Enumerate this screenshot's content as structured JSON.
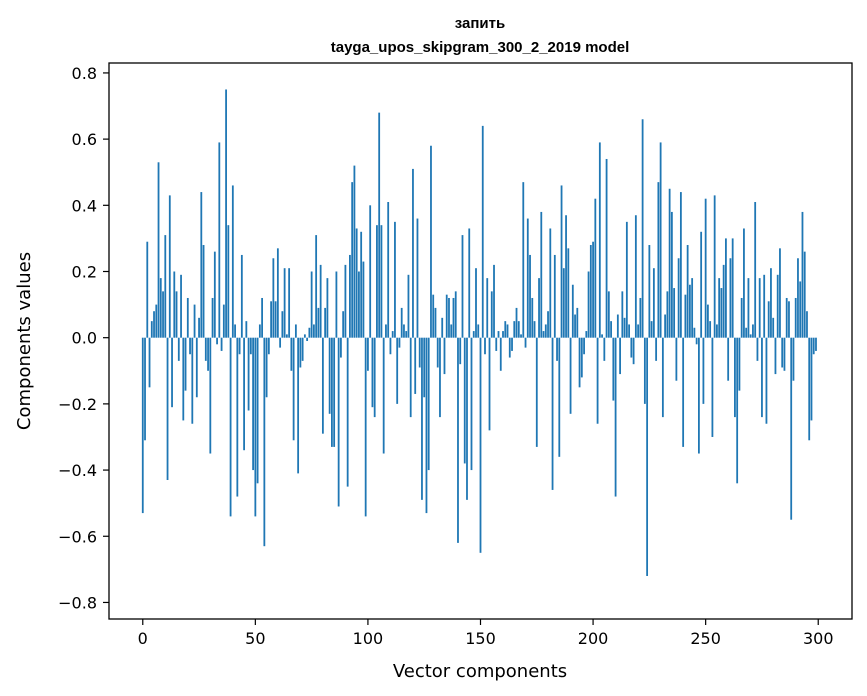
{
  "chart_data": {
    "type": "bar",
    "title_line1": "запить",
    "title_line2": "tayga_upos_skipgram_300_2_2019 model",
    "xlabel": "Vector components",
    "ylabel": "Components values",
    "xlim": [
      -15,
      315
    ],
    "ylim": [
      -0.85,
      0.83
    ],
    "x_ticks": [
      0,
      50,
      100,
      150,
      200,
      250,
      300
    ],
    "x_tick_labels": [
      "0",
      "50",
      "100",
      "150",
      "200",
      "250",
      "300"
    ],
    "y_ticks": [
      -0.8,
      -0.6,
      -0.4,
      -0.2,
      0.0,
      0.2,
      0.4,
      0.6,
      0.8
    ],
    "y_tick_labels": [
      "−0.8",
      "−0.6",
      "−0.4",
      "−0.2",
      "0.0",
      "0.2",
      "0.4",
      "0.6",
      "0.8"
    ],
    "bar_color": "#1f77b4",
    "grid": false,
    "values": [
      -0.53,
      -0.31,
      0.29,
      -0.15,
      0.05,
      0.08,
      0.1,
      0.53,
      0.18,
      0.14,
      0.31,
      -0.43,
      0.43,
      -0.21,
      0.2,
      0.14,
      -0.07,
      0.19,
      -0.25,
      -0.16,
      0.12,
      -0.05,
      -0.26,
      0.1,
      -0.18,
      0.06,
      0.44,
      0.28,
      -0.07,
      -0.1,
      -0.35,
      0.12,
      0.26,
      -0.02,
      0.59,
      -0.04,
      0.1,
      0.75,
      0.34,
      -0.54,
      0.46,
      0.04,
      -0.48,
      -0.05,
      0.25,
      -0.34,
      0.05,
      -0.22,
      -0.05,
      -0.4,
      -0.54,
      -0.44,
      0.04,
      0.12,
      -0.63,
      -0.18,
      -0.05,
      0.11,
      0.24,
      0.11,
      0.27,
      -0.03,
      0.08,
      0.21,
      0.01,
      0.21,
      -0.1,
      -0.31,
      0.04,
      -0.41,
      -0.09,
      -0.07,
      0.01,
      -0.01,
      0.03,
      0.2,
      0.04,
      0.31,
      0.09,
      0.22,
      -0.29,
      0.09,
      0.18,
      -0.23,
      -0.33,
      -0.33,
      0.2,
      -0.51,
      -0.06,
      0.08,
      0.22,
      -0.45,
      0.25,
      0.47,
      0.52,
      0.33,
      0.2,
      0.32,
      0.23,
      -0.54,
      -0.1,
      0.4,
      -0.21,
      -0.24,
      0.34,
      0.68,
      0.34,
      -0.35,
      0.04,
      0.41,
      -0.05,
      0.02,
      0.35,
      -0.2,
      -0.03,
      0.09,
      0.04,
      0.02,
      0.19,
      -0.24,
      0.51,
      -0.17,
      0.36,
      -0.09,
      -0.49,
      -0.18,
      -0.53,
      -0.4,
      0.58,
      0.13,
      0.09,
      -0.09,
      -0.24,
      0.06,
      -0.11,
      0.13,
      0.12,
      0.04,
      0.12,
      0.14,
      -0.62,
      -0.08,
      0.31,
      -0.38,
      -0.49,
      0.33,
      -0.4,
      0.02,
      0.21,
      0.04,
      -0.65,
      0.64,
      -0.05,
      0.18,
      -0.28,
      0.14,
      0.22,
      -0.04,
      0.02,
      -0.1,
      0.02,
      0.05,
      0.04,
      -0.06,
      -0.04,
      0.05,
      0.09,
      0.05,
      0.01,
      0.47,
      -0.03,
      0.36,
      0.25,
      0.12,
      0.05,
      -0.33,
      0.18,
      0.38,
      0.02,
      0.04,
      0.08,
      0.33,
      -0.46,
      0.25,
      -0.07,
      -0.36,
      0.46,
      0.21,
      0.37,
      0.27,
      -0.23,
      0.16,
      0.07,
      0.09,
      -0.15,
      -0.12,
      -0.05,
      0.02,
      0.2,
      0.28,
      0.29,
      0.42,
      -0.26,
      0.59,
      0.01,
      -0.07,
      0.54,
      0.14,
      0.05,
      -0.19,
      -0.48,
      0.07,
      -0.11,
      0.14,
      0.06,
      0.35,
      0.04,
      -0.06,
      -0.08,
      0.37,
      0.04,
      0.12,
      0.66,
      -0.2,
      -0.72,
      0.28,
      0.05,
      0.21,
      -0.07,
      0.47,
      0.59,
      -0.24,
      0.07,
      0.14,
      0.45,
      0.38,
      0.15,
      -0.13,
      0.24,
      0.44,
      -0.33,
      0.13,
      0.28,
      0.16,
      0.18,
      0.03,
      -0.02,
      -0.35,
      0.32,
      -0.2,
      0.42,
      0.1,
      0.05,
      -0.3,
      0.43,
      0.04,
      0.18,
      0.15,
      0.22,
      0.3,
      -0.13,
      0.24,
      0.3,
      -0.24,
      -0.44,
      -0.16,
      0.12,
      0.33,
      0.03,
      0.18,
      0.01,
      0.04,
      0.41,
      -0.07,
      0.18,
      -0.24,
      0.19,
      -0.26,
      0.11,
      0.21,
      0.06,
      -0.11,
      0.19,
      0.27,
      -0.09,
      -0.1,
      0.12,
      0.11,
      -0.55,
      -0.13,
      0.12,
      0.24,
      0.17,
      0.38,
      0.26,
      0.08,
      -0.31,
      -0.25,
      -0.05,
      -0.04
    ]
  }
}
